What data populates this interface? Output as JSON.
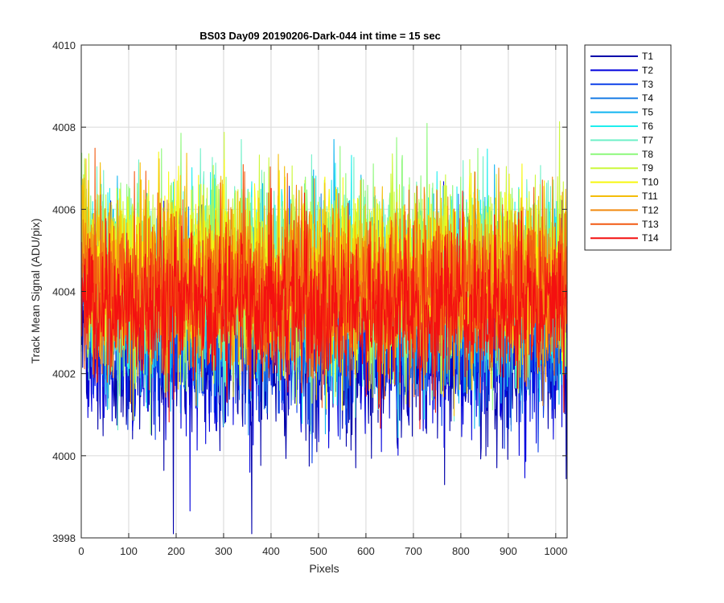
{
  "chart_data": {
    "type": "line",
    "title": "BS03 Day09 20190206-Dark-044 int time = 15 sec",
    "xlabel": "Pixels",
    "ylabel": "Track Mean Signal (ADU/pix)",
    "xlim": [
      0,
      1024
    ],
    "ylim": [
      3998,
      4010
    ],
    "xticks": [
      0,
      100,
      200,
      300,
      400,
      500,
      600,
      700,
      800,
      900,
      1000
    ],
    "yticks": [
      3998,
      4000,
      4002,
      4004,
      4006,
      4008,
      4010
    ],
    "grid": true,
    "legend_position": "outside-top-right",
    "n_points_per_series": 1024,
    "series": [
      {
        "name": "T1",
        "color": "#0000AA",
        "mean": 4002.6,
        "spread": 1.15
      },
      {
        "name": "T2",
        "color": "#0000DD",
        "mean": 4002.9,
        "spread": 1.1
      },
      {
        "name": "T3",
        "color": "#0B3FE8",
        "mean": 4003.2,
        "spread": 1.05
      },
      {
        "name": "T4",
        "color": "#1E7FE6",
        "mean": 4003.5,
        "spread": 1.0
      },
      {
        "name": "T5",
        "color": "#11B5F0",
        "mean": 4003.9,
        "spread": 1.05
      },
      {
        "name": "T6",
        "color": "#1FEEEE",
        "mean": 4004.2,
        "spread": 1.1
      },
      {
        "name": "T7",
        "color": "#6FF0C8",
        "mean": 4004.4,
        "spread": 1.1
      },
      {
        "name": "T8",
        "color": "#8CF87A",
        "mean": 4004.5,
        "spread": 1.1
      },
      {
        "name": "T9",
        "color": "#CCF83C",
        "mean": 4004.5,
        "spread": 1.1
      },
      {
        "name": "T10",
        "color": "#F7F70F",
        "mean": 4004.5,
        "spread": 1.05
      },
      {
        "name": "T11",
        "color": "#F4BD09",
        "mean": 4004.4,
        "spread": 1.0
      },
      {
        "name": "T12",
        "color": "#F28A0F",
        "mean": 4004.2,
        "spread": 1.0
      },
      {
        "name": "T13",
        "color": "#F25A12",
        "mean": 4003.9,
        "spread": 0.95
      },
      {
        "name": "T14",
        "color": "#F41010",
        "mean": 4003.6,
        "spread": 0.9
      }
    ]
  }
}
